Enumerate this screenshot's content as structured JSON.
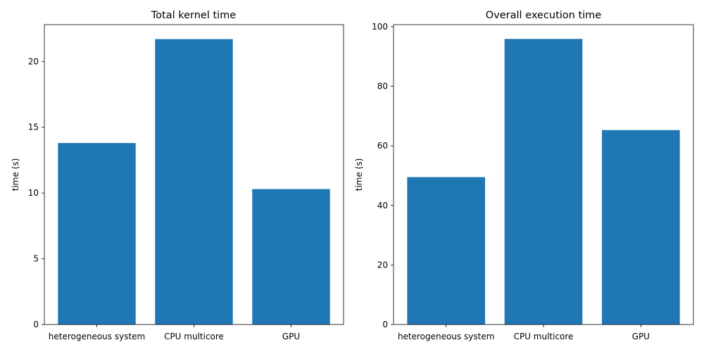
{
  "chart_data": [
    {
      "type": "bar",
      "title": "Total kernel time",
      "xlabel": "",
      "ylabel": "time (s)",
      "categories": [
        "heterogeneous system",
        "CPU multicore",
        "GPU"
      ],
      "values": [
        13.8,
        21.7,
        10.3
      ],
      "ylim": [
        0,
        22.8
      ],
      "yticks": [
        0,
        5,
        10,
        15,
        20
      ],
      "grid": false,
      "bar_color": "#1f77b4"
    },
    {
      "type": "bar",
      "title": "Overall execution time",
      "xlabel": "",
      "ylabel": "time (s)",
      "categories": [
        "heterogeneous system",
        "CPU multicore",
        "GPU"
      ],
      "values": [
        49.5,
        95.9,
        65.3
      ],
      "ylim": [
        0,
        100.7
      ],
      "yticks": [
        0,
        20,
        40,
        60,
        80,
        100
      ],
      "grid": false,
      "bar_color": "#1f77b4"
    }
  ]
}
